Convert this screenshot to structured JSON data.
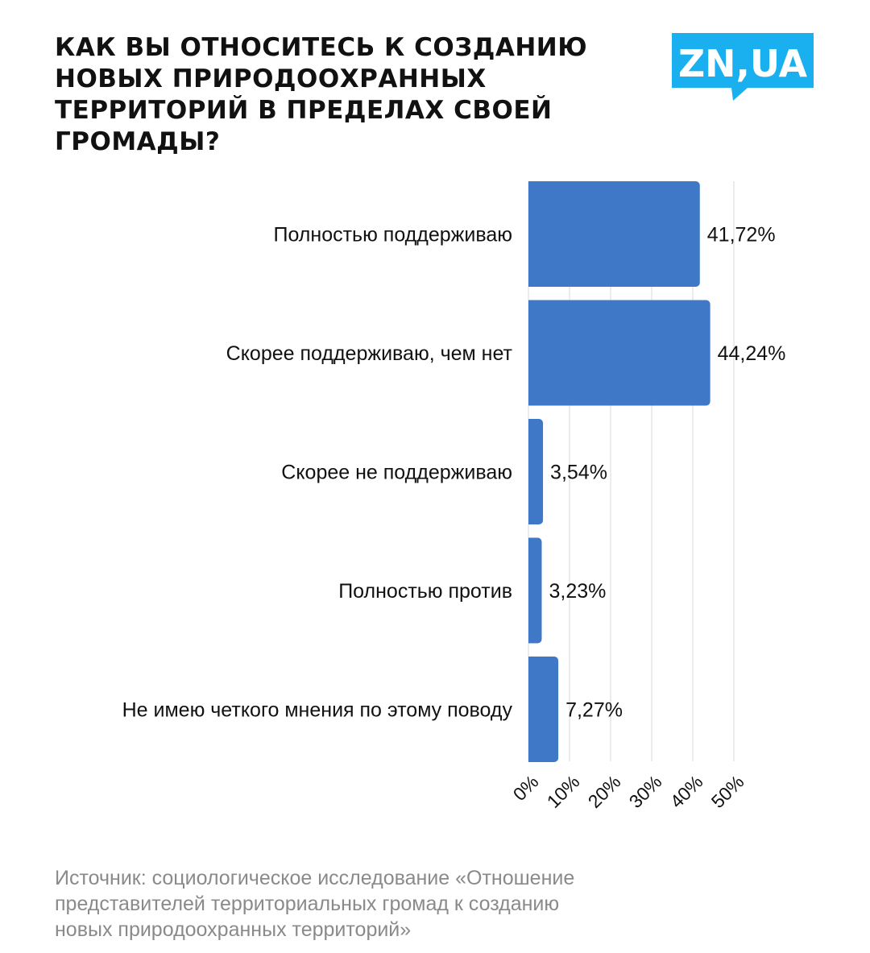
{
  "header": {
    "title_lines": [
      "КАК ВЫ ОТНОСИТЕСЬ К СОЗДАНИЮ",
      "НОВЫХ ПРИРОДООХРАННЫХ",
      "ТЕРРИТОРИЙ В ПРЕДЕЛАХ СВОЕЙ",
      "ГРОМАДЫ?"
    ],
    "logo_text": "ZN,UA",
    "logo_color": "#1ab0ef"
  },
  "chart_data": {
    "type": "bar",
    "orientation": "horizontal",
    "title": "КАК ВЫ ОТНОСИТЕСЬ К СОЗДАНИЮ НОВЫХ ПРИРОДООХРАННЫХ ТЕРРИТОРИЙ В ПРЕДЕЛАХ СВОЕЙ ГРОМАДЫ?",
    "categories": [
      "Полностью поддерживаю",
      "Скорее поддерживаю, чем нет",
      "Скорее не поддерживаю",
      "Полностью против",
      "Не имею четкого мнения по этому поводу"
    ],
    "values": [
      41.72,
      44.24,
      3.54,
      3.23,
      7.27
    ],
    "value_labels": [
      "41,72%",
      "44,24%",
      "3,54%",
      "3,23%",
      "7,27%"
    ],
    "xticks": [
      "0%",
      "10%",
      "20%",
      "30%",
      "40%",
      "50%"
    ],
    "xlim": [
      0,
      50
    ],
    "grid": true,
    "bar_color": "#3e78c6",
    "grid_color": "#d9d9d9"
  },
  "footer": {
    "source_lines": [
      "Источник: социологическое исследование «Отношение",
      "представителей территориальных громад к созданию",
      "новых природоохранных территорий»"
    ]
  }
}
